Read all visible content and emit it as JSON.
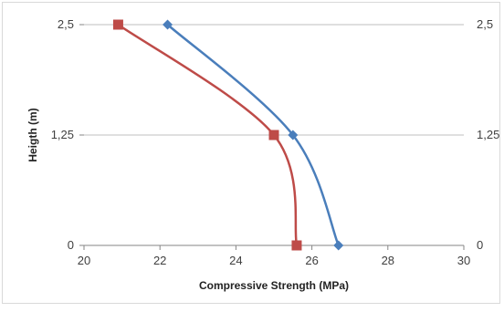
{
  "chart_data": {
    "type": "line",
    "title": "",
    "xlabel": "Compressive Strength (MPa)",
    "ylabel": "Heigth (m)",
    "xlim": [
      20,
      30
    ],
    "ylim": [
      0,
      2.5
    ],
    "x_ticks": [
      "20",
      "22",
      "24",
      "26",
      "28",
      "30"
    ],
    "y_ticks": [
      "0",
      "1,25",
      "2,5"
    ],
    "y2_ticks": [
      "0",
      "1,25",
      "2,5"
    ],
    "grid": "horizontal",
    "legend": "none",
    "smooth": true,
    "series": [
      {
        "marker": "diamond",
        "color": "#4a7ebb",
        "points": [
          {
            "x": 26.7,
            "y": 0
          },
          {
            "x": 25.5,
            "y": 1.25
          },
          {
            "x": 22.2,
            "y": 2.5
          }
        ]
      },
      {
        "marker": "square",
        "color": "#be4b48",
        "points": [
          {
            "x": 25.6,
            "y": 0
          },
          {
            "x": 25.0,
            "y": 1.25
          },
          {
            "x": 20.9,
            "y": 2.5
          }
        ]
      }
    ]
  }
}
